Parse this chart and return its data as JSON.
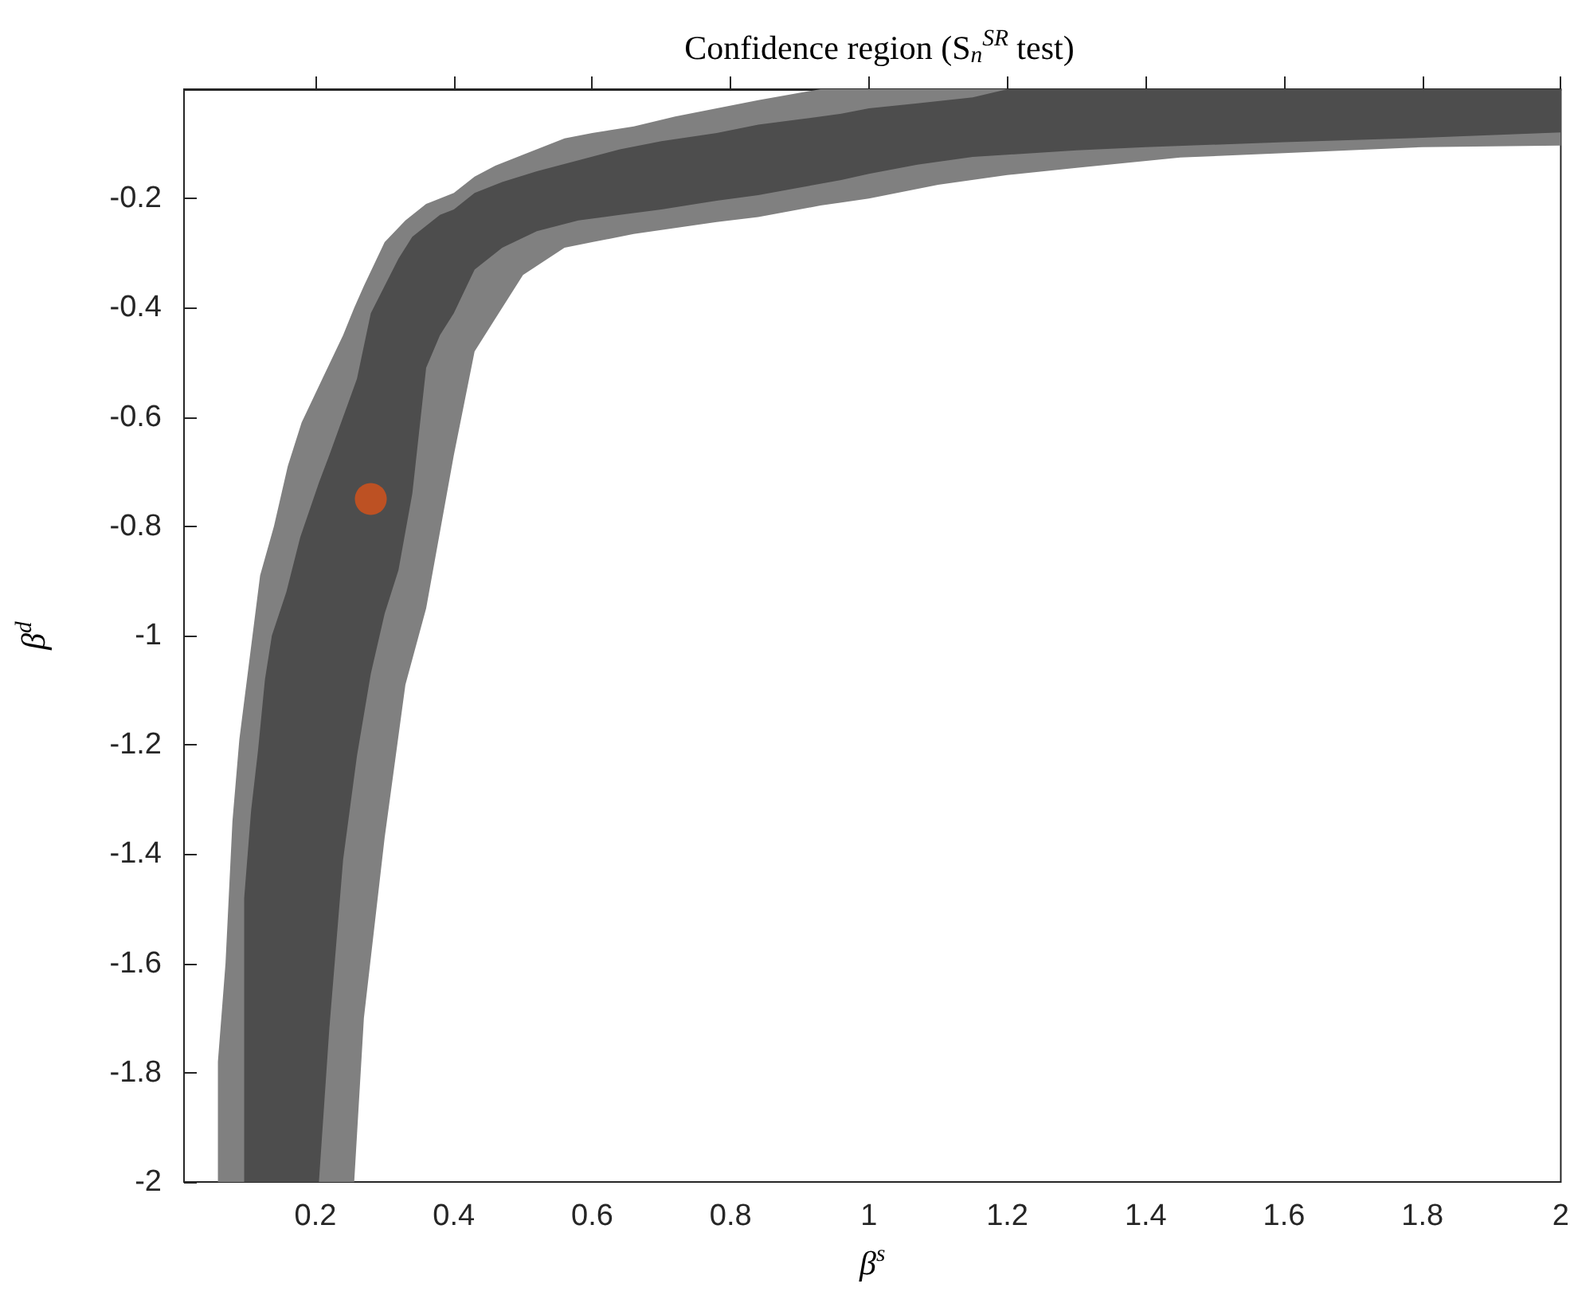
{
  "chart_data": {
    "type": "area",
    "title": "Confidence region (S$_{n}$$^{SR}$ test)",
    "xlabel": "β$^{s}$",
    "ylabel": "β$^{d}$",
    "xlim": [
      0.01,
      2
    ],
    "ylim": [
      -2,
      0
    ],
    "xticks": [
      0.2,
      0.4,
      0.6,
      0.8,
      1,
      1.2,
      1.4,
      1.6,
      1.8,
      2
    ],
    "yticks": [
      -2,
      -1.8,
      -1.6,
      -1.4,
      -1.2,
      -1,
      -0.8,
      -0.6,
      -0.4,
      -0.2
    ],
    "series": [
      {
        "color": "#808080",
        "x": [
          0.059,
          0.07,
          0.08,
          0.09,
          0.1,
          0.12,
          0.14,
          0.16,
          0.18,
          0.21,
          0.24,
          0.256,
          0.27,
          0.3,
          0.33,
          0.36,
          0.4,
          0.43,
          0.46,
          0.5,
          0.56,
          0.6,
          0.66,
          0.72,
          0.78,
          0.84,
          0.93,
          2.0,
          2.0,
          1.8,
          1.6,
          1.45,
          1.3,
          1.2,
          1.1,
          1.0,
          0.93,
          0.84,
          0.78,
          0.72,
          0.66,
          0.6,
          0.56,
          0.5,
          0.46,
          0.43,
          0.4,
          0.36,
          0.33,
          0.3,
          0.27,
          0.256,
          0.059
        ],
        "values": [
          -1.78,
          -1.6,
          -1.34,
          -1.19,
          -1.09,
          -0.89,
          -0.8,
          -0.69,
          -0.61,
          -0.53,
          -0.45,
          -0.4,
          -0.36,
          -0.28,
          -0.24,
          -0.21,
          -0.19,
          -0.16,
          -0.14,
          -0.12,
          -0.09,
          -0.08,
          -0.068,
          -0.05,
          -0.035,
          -0.02,
          0,
          0,
          -0.103,
          -0.106,
          -0.117,
          -0.125,
          -0.144,
          -0.157,
          -0.175,
          -0.2,
          -0.213,
          -0.234,
          -0.243,
          -0.254,
          -0.265,
          -0.28,
          -0.29,
          -0.34,
          -0.42,
          -0.48,
          -0.67,
          -0.95,
          -1.09,
          -1.37,
          -1.7,
          -2,
          -2
        ]
      },
      {
        "color": "#4d4d4d",
        "x": [
          0.097,
          0.107,
          0.117,
          0.127,
          0.137,
          0.158,
          0.178,
          0.205,
          0.22,
          0.24,
          0.26,
          0.28,
          0.3,
          0.32,
          0.34,
          0.36,
          0.38,
          0.4,
          0.43,
          0.47,
          0.52,
          0.58,
          0.64,
          0.7,
          0.78,
          0.84,
          0.9,
          0.96,
          1.0,
          1.07,
          1.15,
          1.2,
          2.0,
          2.0,
          1.8,
          1.6,
          1.4,
          1.3,
          1.2,
          1.15,
          1.07,
          1.0,
          0.96,
          0.9,
          0.84,
          0.78,
          0.7,
          0.64,
          0.58,
          0.52,
          0.47,
          0.43,
          0.4,
          0.38,
          0.36,
          0.34,
          0.32,
          0.3,
          0.28,
          0.26,
          0.24,
          0.22,
          0.205,
          0.097
        ],
        "values": [
          -1.48,
          -1.32,
          -1.21,
          -1.08,
          -1.0,
          -0.92,
          -0.82,
          -0.72,
          -0.67,
          -0.6,
          -0.53,
          -0.41,
          -0.36,
          -0.31,
          -0.27,
          -0.25,
          -0.23,
          -0.22,
          -0.19,
          -0.17,
          -0.15,
          -0.13,
          -0.11,
          -0.095,
          -0.08,
          -0.065,
          -0.055,
          -0.045,
          -0.035,
          -0.026,
          -0.015,
          0,
          0,
          -0.079,
          -0.089,
          -0.097,
          -0.106,
          -0.112,
          -0.12,
          -0.124,
          -0.138,
          -0.155,
          -0.166,
          -0.18,
          -0.194,
          -0.204,
          -0.22,
          -0.23,
          -0.24,
          -0.26,
          -0.29,
          -0.33,
          -0.41,
          -0.45,
          -0.51,
          -0.74,
          -0.88,
          -0.96,
          -1.07,
          -1.22,
          -1.41,
          -1.72,
          -2,
          -2
        ]
      },
      {
        "type": "scatter",
        "color": "#d95319",
        "marker": "circle",
        "x": [
          0.28
        ],
        "values": [
          -0.75
        ]
      }
    ]
  }
}
